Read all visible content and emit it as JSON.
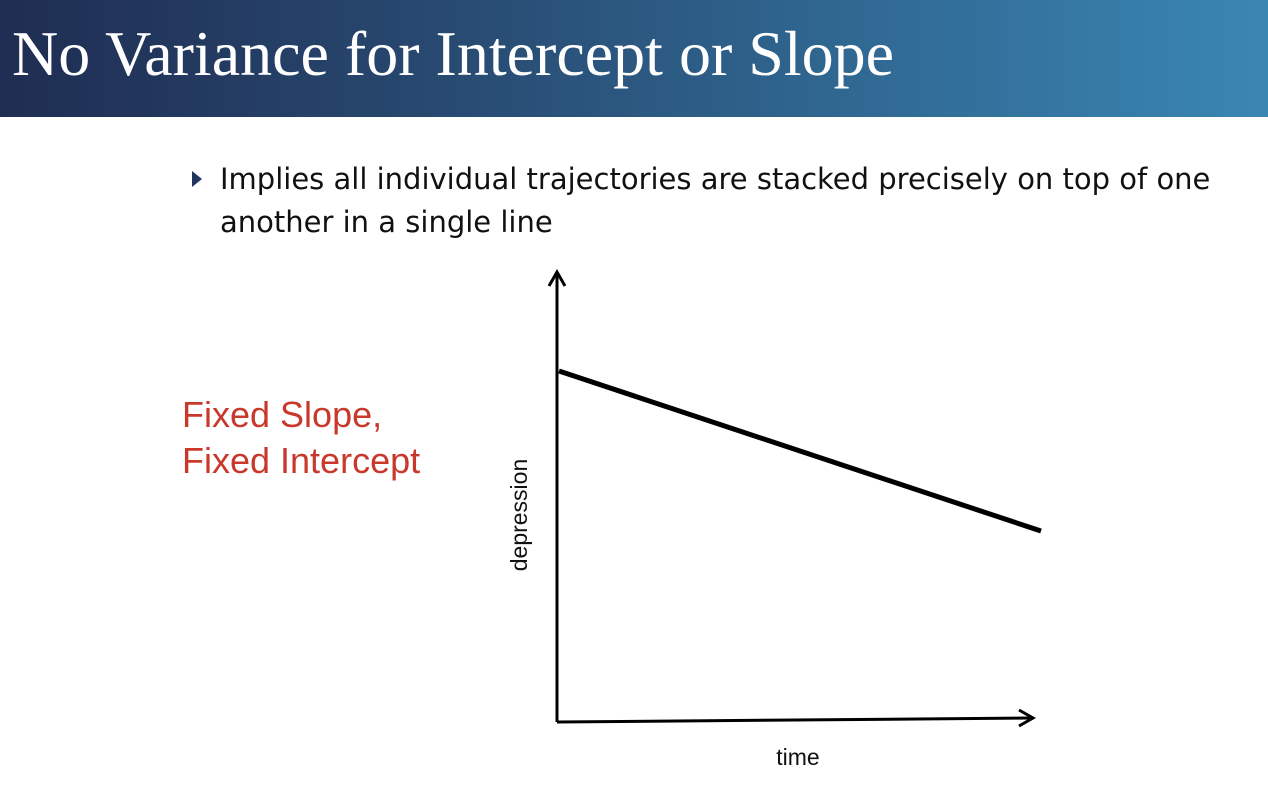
{
  "slide": {
    "title": "No Variance for Intercept or Slope",
    "bullet": "Implies all individual trajectories are stacked precisely on top of one another in a single line",
    "label_line1": "Fixed Slope,",
    "label_line2": "Fixed Intercept"
  },
  "diagram": {
    "y_axis_label": "depression",
    "x_axis_label": "time"
  },
  "colors": {
    "title_gradient_start": "#1f2d52",
    "title_gradient_end": "#3a86b3",
    "label_red": "#c8382b",
    "bullet_marker": "#1f3560"
  }
}
